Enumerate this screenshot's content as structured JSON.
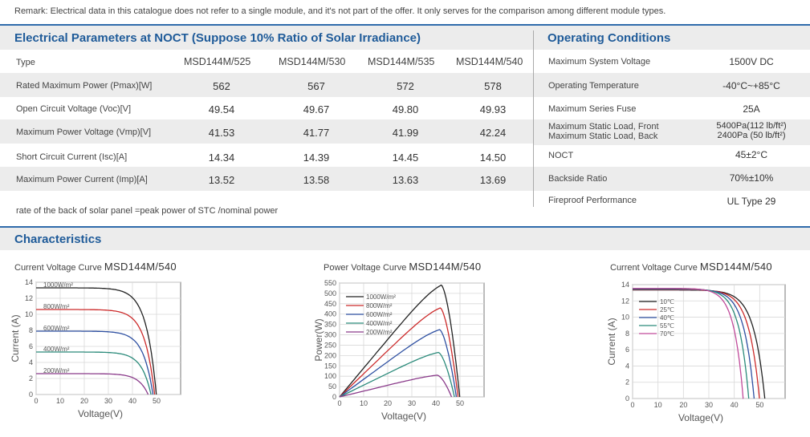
{
  "remark": "Remark: Electrical data in this catalogue does not refer to a single module, and it's not part of the offer. It only serves for the comparison among different module types.",
  "electrical": {
    "title": "Electrical Parameters at NOCT (Suppose 10% Ratio of Solar Irradiance)",
    "header_label": "Type",
    "models": [
      "MSD144M/525",
      "MSD144M/530",
      "MSD144M/535",
      "MSD144M/540"
    ],
    "rows": [
      {
        "label": "Rated Maximum Power (Pmax)[W]",
        "values": [
          "562",
          "567",
          "572",
          "578"
        ]
      },
      {
        "label": "Open Circuit Voltage (Voc)[V]",
        "values": [
          "49.54",
          "49.67",
          "49.80",
          "49.93"
        ]
      },
      {
        "label": "Maximum Power Voltage (Vmp)[V]",
        "values": [
          "41.53",
          "41.77",
          "41.99",
          "42.24"
        ]
      },
      {
        "label": "Short Circuit Current (Isc)[A]",
        "values": [
          "14.34",
          "14.39",
          "14.45",
          "14.50"
        ]
      },
      {
        "label": "Maximum Power Current (Imp)[A]",
        "values": [
          "13.52",
          "13.58",
          "13.63",
          "13.69"
        ]
      }
    ],
    "note": "rate of the back of solar panel =peak power of STC /nominal power"
  },
  "operating": {
    "title": "Operating Conditions",
    "rows": [
      {
        "label": "Maximum System Voltage",
        "value": "1500V DC"
      },
      {
        "label": "Operating Temperature",
        "value": "-40°C~+85°C"
      },
      {
        "label": "Maximum Series Fuse",
        "value": "25A"
      },
      {
        "label": "Maximum Static Load, Front",
        "value": "5400Pa(112 lb/ft²)",
        "label2": "Maximum Static Load, Back",
        "value2": "2400Pa (50 lb/ft²)"
      },
      {
        "label": "NOCT",
        "value": "45±2°C"
      },
      {
        "label": "Backside Ratio",
        "value": "70%±10%"
      },
      {
        "label": "Fireproof Performance",
        "value": "UL Type 29"
      }
    ]
  },
  "characteristics": {
    "title": "Characteristics"
  },
  "chart_data": [
    {
      "type": "line",
      "title": "Current Voltage Curve",
      "model": "MSD144M/540",
      "xlabel": "Voltage(V)",
      "ylabel": "Current (A)",
      "xlim": [
        0,
        60
      ],
      "ylim": [
        0,
        14
      ],
      "xticks": [
        0,
        10,
        20,
        30,
        40,
        50
      ],
      "yticks": [
        0,
        2,
        4,
        6,
        8,
        10,
        12,
        14
      ],
      "grid": true,
      "legend": "inline",
      "series": [
        {
          "name": "1000W/m²",
          "color": "#222222",
          "isc": 13.3,
          "voc": 49.9
        },
        {
          "name": "800W/m²",
          "color": "#cc2a2a",
          "isc": 10.6,
          "voc": 49.2
        },
        {
          "name": "600W/m²",
          "color": "#2d4fa1",
          "isc": 7.9,
          "voc": 48.5
        },
        {
          "name": "400W/m²",
          "color": "#2a8a7a",
          "isc": 5.3,
          "voc": 47.7
        },
        {
          "name": "200W/m²",
          "color": "#8a3a8a",
          "isc": 2.6,
          "voc": 46.5
        }
      ]
    },
    {
      "type": "line",
      "title": "Power Voltage Curve",
      "model": "MSD144M/540",
      "xlabel": "Voltage(V)",
      "ylabel": "Power(W)",
      "xlim": [
        0,
        60
      ],
      "ylim": [
        0,
        550
      ],
      "xticks": [
        0,
        10,
        20,
        30,
        40,
        50
      ],
      "yticks": [
        0,
        50,
        100,
        150,
        200,
        250,
        300,
        350,
        400,
        450,
        500,
        550
      ],
      "grid": true,
      "legend": "inline",
      "series": [
        {
          "name": "1000W/m²",
          "color": "#222222",
          "vmp": 42.2,
          "pmax": 540,
          "voc": 49.9
        },
        {
          "name": "800W/m²",
          "color": "#cc2a2a",
          "vmp": 41.8,
          "pmax": 430,
          "voc": 49.2
        },
        {
          "name": "600W/m²",
          "color": "#2d4fa1",
          "vmp": 41.5,
          "pmax": 325,
          "voc": 48.5
        },
        {
          "name": "400W/m²",
          "color": "#2a8a7a",
          "vmp": 41.0,
          "pmax": 215,
          "voc": 47.7
        },
        {
          "name": "200W/m²",
          "color": "#8a3a8a",
          "vmp": 40.5,
          "pmax": 105,
          "voc": 46.5
        }
      ]
    },
    {
      "type": "line",
      "title": "Current Voltage Curve",
      "model": "MSD144M/540",
      "xlabel": "Voltage(V)",
      "ylabel": "Current (A)",
      "xlim": [
        0,
        60
      ],
      "ylim": [
        0,
        14
      ],
      "xticks": [
        0,
        10,
        20,
        30,
        40,
        50
      ],
      "yticks": [
        0,
        2,
        4,
        6,
        8,
        10,
        12,
        14
      ],
      "grid": true,
      "legend": "inline",
      "series": [
        {
          "name": "10℃",
          "color": "#222222",
          "isc": 13.35,
          "voc": 52.0
        },
        {
          "name": "25℃",
          "color": "#cc2a2a",
          "isc": 13.4,
          "voc": 49.9
        },
        {
          "name": "40℃",
          "color": "#2d4fa1",
          "isc": 13.45,
          "voc": 47.8
        },
        {
          "name": "55℃",
          "color": "#2a8a7a",
          "isc": 13.5,
          "voc": 45.7
        },
        {
          "name": "70℃",
          "color": "#c04a9a",
          "isc": 13.55,
          "voc": 43.5
        }
      ]
    }
  ]
}
